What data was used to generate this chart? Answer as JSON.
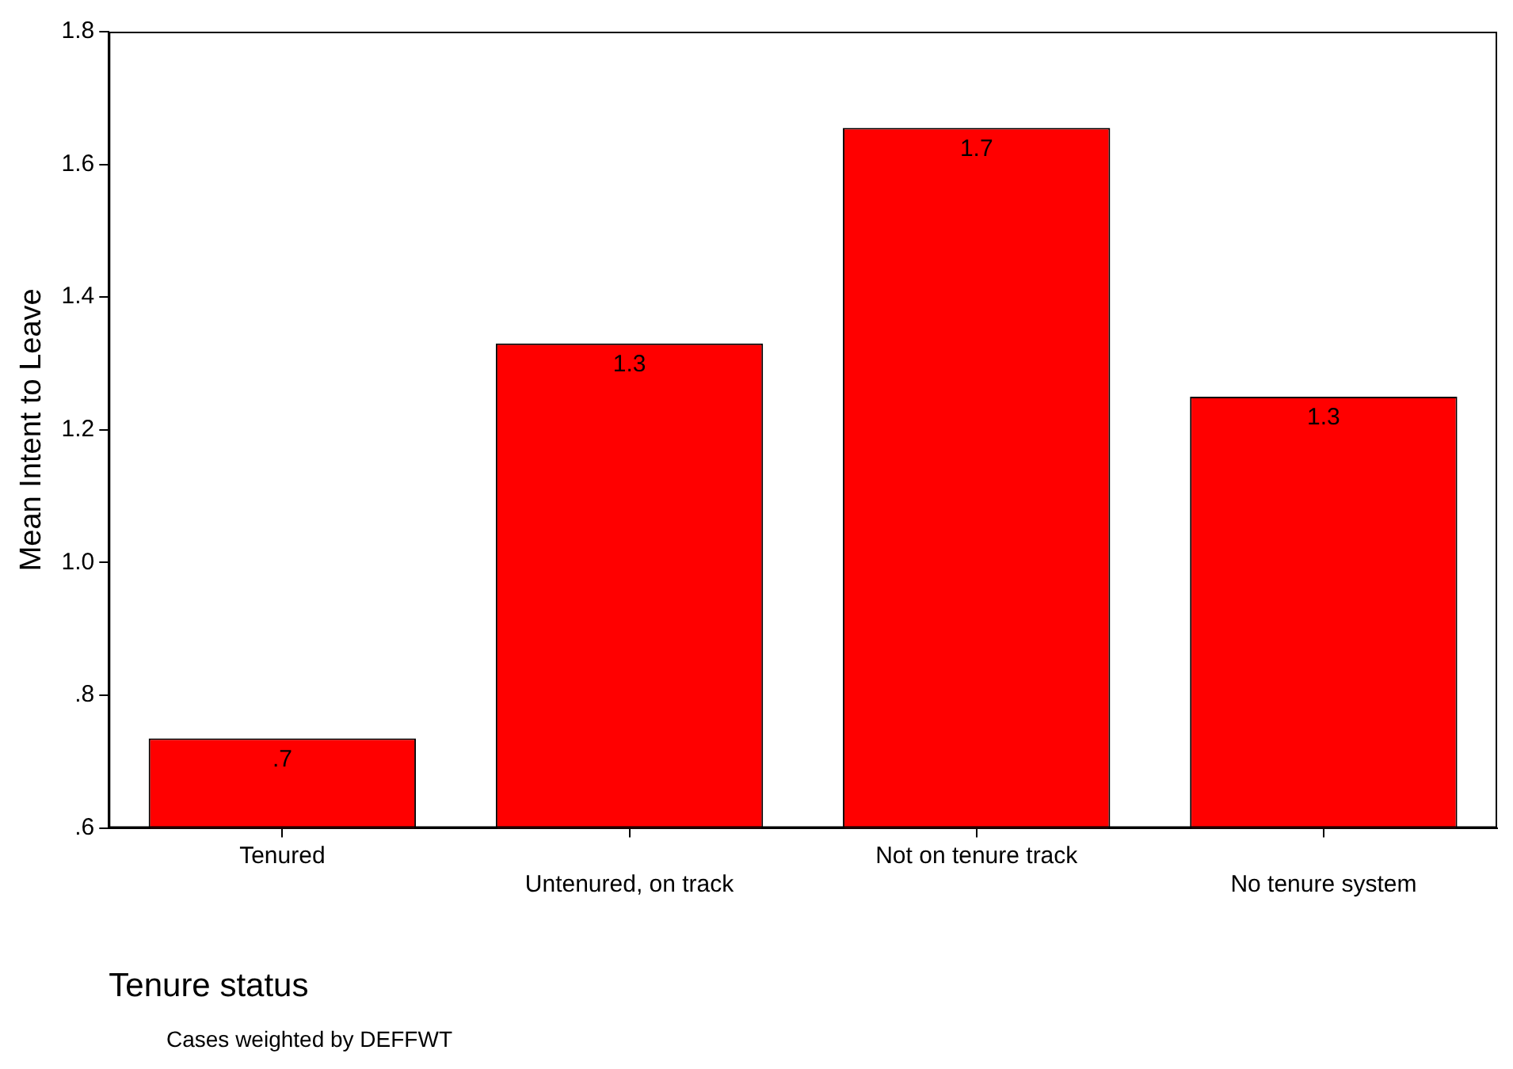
{
  "chart_data": {
    "type": "bar",
    "ylabel": "Mean Intent to Leave",
    "xlabel": "Tenure status",
    "categories": [
      "Tenured",
      "Untenured, on track",
      "Not on tenure track",
      "No tenure system"
    ],
    "values": [
      0.735,
      1.33,
      1.655,
      1.25
    ],
    "value_labels": [
      ".7",
      "1.3",
      "1.7",
      "1.3"
    ],
    "color": "#ff0000",
    "ylim": [
      0.6,
      1.8
    ],
    "yticks": [
      {
        "value": 0.6,
        "label": ".6"
      },
      {
        "value": 0.8,
        "label": ".8"
      },
      {
        "value": 1.0,
        "label": "1.0"
      },
      1.2,
      1.4,
      1.6,
      1.8
    ],
    "grid": false,
    "legend": false,
    "annotations": [
      "Cases weighted by DEFFWT"
    ]
  }
}
